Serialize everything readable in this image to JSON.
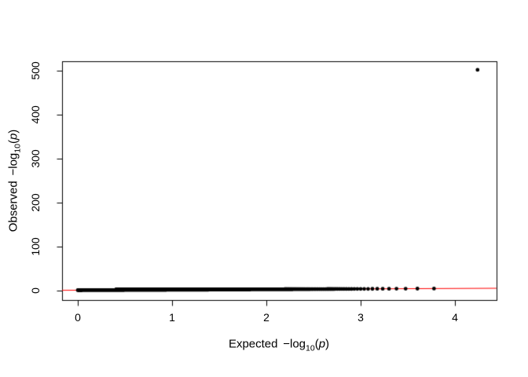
{
  "figure": {
    "background": "#ffffff"
  },
  "labels": {
    "x_axis": {
      "word": "Expected",
      "func": "−log",
      "sub": "10",
      "open": "(",
      "var": "p",
      "close": ")"
    },
    "y_axis": {
      "word": "Observed",
      "func": "−log",
      "sub": "10",
      "open": "(",
      "var": "p",
      "close": ")"
    }
  },
  "chart_data": {
    "type": "scatter",
    "title": "",
    "xlabel": "Expected −log10(p)",
    "ylabel": "Observed −log10(p)",
    "x_ticks": [
      "0",
      "1",
      "2",
      "3",
      "4"
    ],
    "y_ticks": [
      "0",
      "100",
      "200",
      "300",
      "400",
      "500"
    ],
    "x_tick_values": [
      0,
      1,
      2,
      3,
      4
    ],
    "y_tick_values": [
      0,
      100,
      200,
      300,
      400,
      500
    ],
    "xlim": [
      -0.17,
      4.44
    ],
    "ylim": [
      -22,
      521
    ],
    "grid": false,
    "legend": false,
    "axis_color": "#000000",
    "reference_line": {
      "intercept": 0,
      "slope": 1,
      "color": "#ff0000"
    },
    "points_color": "#000000",
    "marker": "filled-circle",
    "point_radius_px": 2.4,
    "null_band": {
      "n_points": 12000,
      "relation": "observed equals expected (y = x), band hugging y = 0 on compressed axis",
      "x_min": 0,
      "x_max": 3.78
    },
    "tail_point_x": [
      3.08,
      3.12,
      3.18,
      3.23,
      3.3,
      3.38,
      3.48,
      3.6,
      3.78
    ],
    "outlier_point": {
      "x": 4.24,
      "y": 502
    }
  }
}
